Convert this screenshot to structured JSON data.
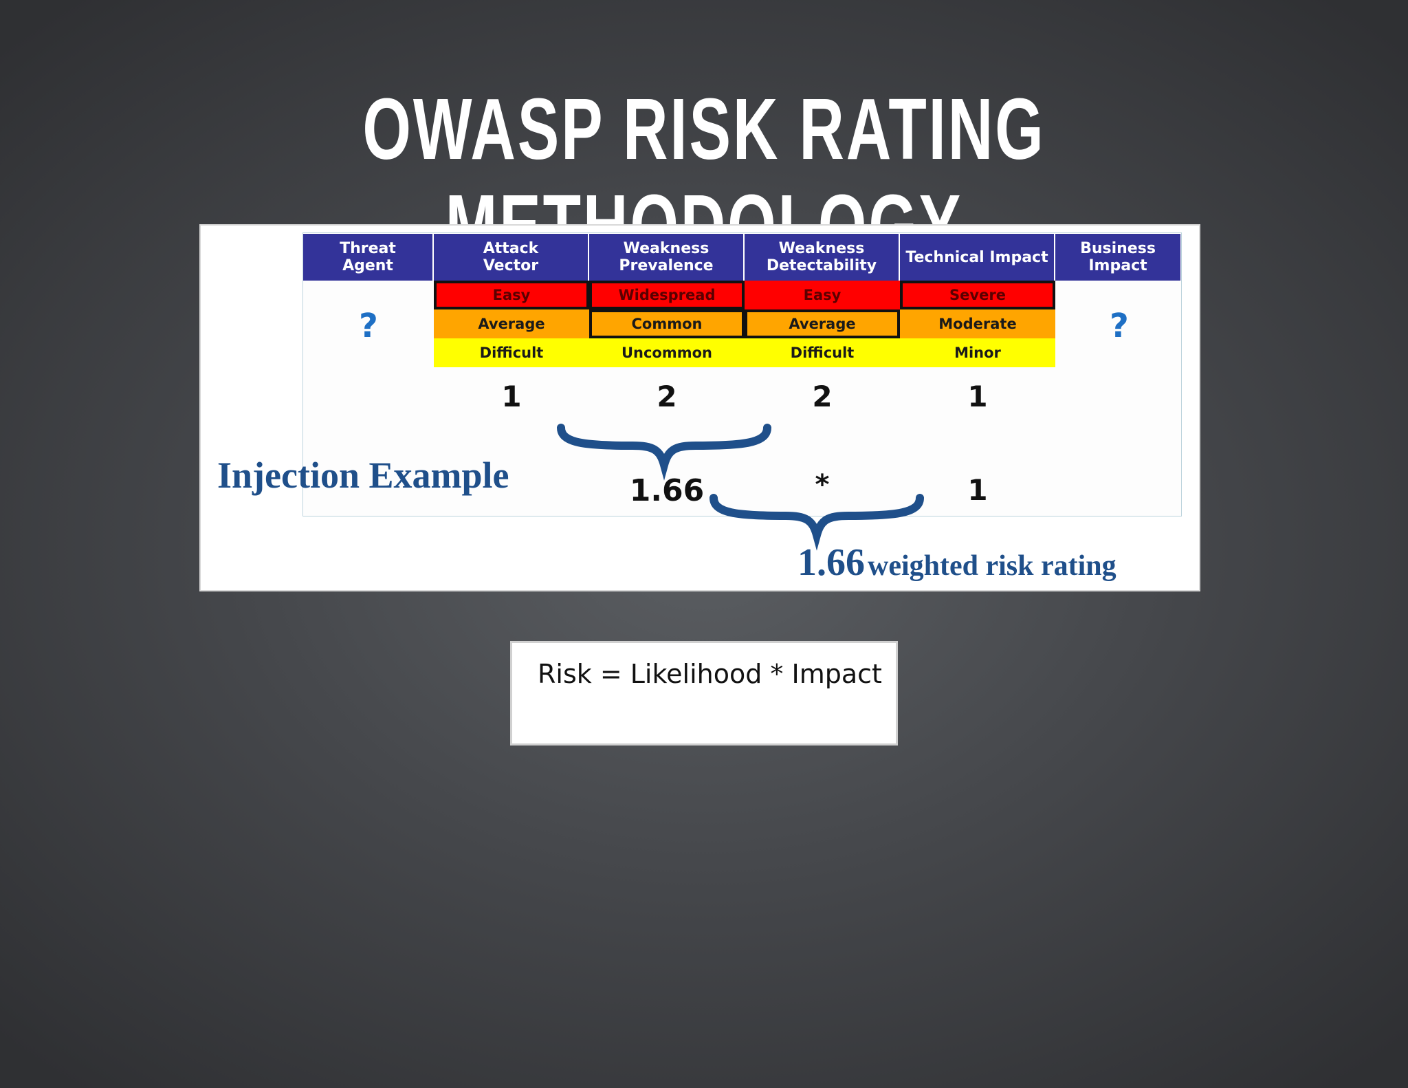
{
  "title": "OWASP RISK RATING METHODOLOGY",
  "table": {
    "headers": [
      {
        "line1": "Threat",
        "line2": "Agent"
      },
      {
        "line1": "Attack",
        "line2": "Vector"
      },
      {
        "line1": "Weakness",
        "line2": "Prevalence"
      },
      {
        "line1": "Weakness",
        "line2": "Detectability"
      },
      {
        "line1": "Technical Impact",
        "line2": ""
      },
      {
        "line1": "Business",
        "line2": "Impact"
      }
    ],
    "rows": [
      [
        "Easy",
        "Widespread",
        "Easy",
        "Severe"
      ],
      [
        "Average",
        "Common",
        "Average",
        "Moderate"
      ],
      [
        "Difficult",
        "Uncommon",
        "Difficult",
        "Minor"
      ]
    ],
    "row_colors": [
      "#ff0000",
      "#ffa500",
      "#ffff00"
    ],
    "threat_agent_value": "?",
    "business_impact_value": "?",
    "scores": [
      "1",
      "2",
      "2",
      "1"
    ]
  },
  "example": {
    "label": "Injection Example",
    "likelihood": "1.66",
    "operator": "*",
    "impact": "1",
    "result_value": "1.66",
    "result_text": "weighted risk rating"
  },
  "formula": "Risk = Likelihood * Impact",
  "colors": {
    "header_bg": "#333399",
    "question_mark": "#1e6fc4",
    "example_text": "#1f4f8a",
    "brace": "#1f4f8a"
  }
}
